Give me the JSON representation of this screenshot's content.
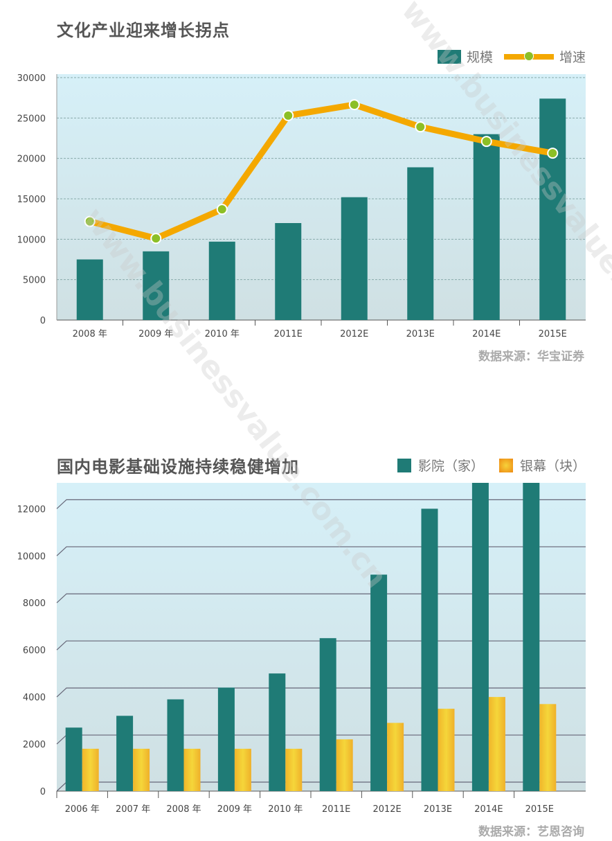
{
  "watermark": "www.businessvalue.com.cn",
  "colors": {
    "teal": "#1f7b76",
    "orange": "#f4a800",
    "marker": "#8cbf26",
    "screen": "#f2c12e"
  },
  "chart_data": [
    {
      "type": "bar+line",
      "title": "文化产业迎来增长拐点",
      "categories": [
        "2008 年",
        "2009 年",
        "2010 年",
        "2011E",
        "2012E",
        "2013E",
        "2014E",
        "2015E"
      ],
      "series": [
        {
          "name": "规模",
          "type": "bar",
          "values": [
            7500,
            8500,
            9700,
            12000,
            15200,
            18900,
            23000,
            27400
          ]
        },
        {
          "name": "增速",
          "type": "line",
          "values": [
            12200,
            10100,
            13700,
            25300,
            26650,
            23900,
            22100,
            20650
          ]
        }
      ],
      "ylim": [
        0,
        30000
      ],
      "yticks": [
        "0",
        "5000",
        "10000",
        "15000",
        "20000",
        "25000",
        "30000"
      ],
      "grid": true,
      "legend": "top-right",
      "source": "数据来源：华宝证券"
    },
    {
      "type": "bar",
      "title": "国内电影基础设施持续稳健增加",
      "categories": [
        "2006 年",
        "2007 年",
        "2008 年",
        "2009 年",
        "2010 年",
        "2011E",
        "2012E",
        "2013E",
        "2014E",
        "2015E"
      ],
      "series": [
        {
          "name": "影院（家）",
          "values": [
            2700,
            3200,
            3900,
            4400,
            5000,
            6500,
            9200,
            12000,
            13100,
            13100
          ]
        },
        {
          "name": "银幕（块）",
          "values": [
            1800,
            1800,
            1800,
            1800,
            1800,
            2200,
            2900,
            3500,
            4000,
            3700
          ]
        }
      ],
      "ylim": [
        0,
        13100
      ],
      "yticks": [
        "0",
        "2000",
        "4000",
        "6000",
        "8000",
        "10000",
        "12000"
      ],
      "grid": true,
      "legend": "top-right",
      "source": "数据来源：艺恩咨询"
    }
  ]
}
